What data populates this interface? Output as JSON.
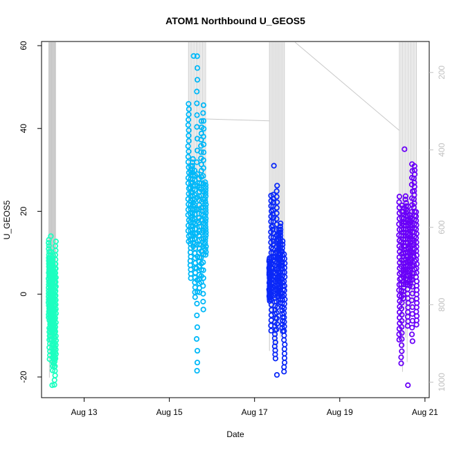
{
  "chart_data": {
    "type": "scatter",
    "title": "ATOM1 Northbound U_GEOS5",
    "xlabel": "Date",
    "ylabel": "U_GEOS5",
    "x_ticks": [
      {
        "label": "Aug 13",
        "day": 13
      },
      {
        "label": "Aug 15",
        "day": 15
      },
      {
        "label": "Aug 17",
        "day": 17
      },
      {
        "label": "Aug 19",
        "day": 19
      },
      {
        "label": "Aug 21",
        "day": 21
      }
    ],
    "y_ticks": [
      -20,
      0,
      20,
      40,
      60
    ],
    "y_right_ticks": [
      200,
      400,
      600,
      800,
      1000
    ],
    "xlim_days": [
      12.0,
      21.1
    ],
    "ylim": [
      -25,
      61
    ],
    "y_right_range": [
      1040,
      120
    ],
    "grid": false,
    "series": [
      {
        "color": "#1CFFC0",
        "x_range_days": [
          12.17,
          12.33
        ],
        "y_min": -22,
        "y_max": 14,
        "pressure_range": [
          700,
          1000
        ]
      },
      {
        "color": "#00B8F8",
        "x_range_days": [
          15.45,
          15.85
        ],
        "y_min": -18.5,
        "y_max": 57.5,
        "pressure_range": [
          150,
          750
        ]
      },
      {
        "color": "#0A28F8",
        "x_range_days": [
          17.35,
          17.7
        ],
        "y_min": -19.5,
        "y_max": 31,
        "pressure_range": [
          150,
          950
        ]
      },
      {
        "color": "#6A00F8",
        "x_range_days": [
          20.4,
          20.8
        ],
        "y_min": -22,
        "y_max": 35,
        "pressure_range": [
          150,
          1000
        ]
      }
    ],
    "trajectory_color": "#c8c8c8"
  }
}
